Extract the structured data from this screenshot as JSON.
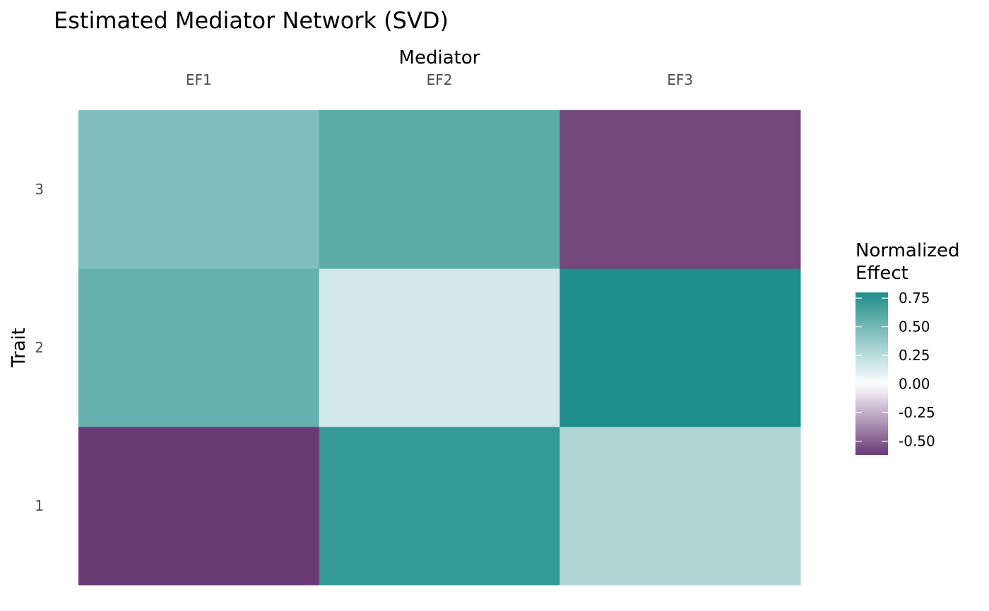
{
  "chart_data": {
    "type": "heatmap",
    "title": "Estimated Mediator Network (SVD)",
    "xlabel": "Mediator",
    "ylabel": "Trait",
    "x_categories": [
      "EF1",
      "EF2",
      "EF3"
    ],
    "y_categories": [
      "1",
      "2",
      "3"
    ],
    "x_axis_position": "top",
    "grid": false,
    "values": [
      {
        "x": "EF1",
        "y": "1",
        "value": -0.62
      },
      {
        "x": "EF2",
        "y": "1",
        "value": 0.72
      },
      {
        "x": "EF3",
        "y": "1",
        "value": 0.28
      },
      {
        "x": "EF1",
        "y": "2",
        "value": 0.55
      },
      {
        "x": "EF2",
        "y": "2",
        "value": 0.16
      },
      {
        "x": "EF3",
        "y": "2",
        "value": 0.8
      },
      {
        "x": "EF1",
        "y": "3",
        "value": 0.46
      },
      {
        "x": "EF2",
        "y": "3",
        "value": 0.58
      },
      {
        "x": "EF3",
        "y": "3",
        "value": -0.58
      }
    ],
    "legend": {
      "title_lines": [
        "Normalized",
        "Effect"
      ],
      "placement": "right",
      "ticks": [
        0.75,
        0.5,
        0.25,
        0.0,
        -0.25,
        -0.5
      ],
      "tick_labels": [
        "0.75",
        "0.50",
        "0.25",
        "0.00",
        "-0.25",
        "-0.50"
      ],
      "range": [
        -0.62,
        0.8
      ],
      "colors": {
        "low": "#6a3a75",
        "mid": "#ffffff",
        "high": "#1e8e8a"
      }
    }
  }
}
